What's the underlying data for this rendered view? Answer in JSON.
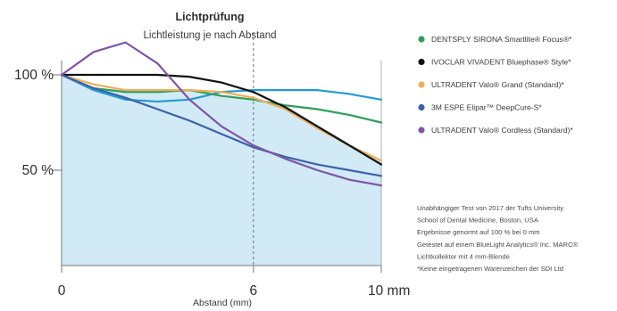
{
  "chart_data": {
    "type": "line",
    "title": "Lichtprüfung",
    "subtitle": "Lichtleistung je nach Abstand",
    "xlabel": "Abstand (mm)",
    "ylabel": "",
    "xlim": [
      0,
      10
    ],
    "ylim": [
      0,
      125
    ],
    "x_ticks": [
      {
        "value": 0,
        "label": "0"
      },
      {
        "value": 6,
        "label": "6"
      },
      {
        "value": 10,
        "label": "10 mm"
      }
    ],
    "y_ticks": [
      {
        "value": 100,
        "label": "100 %"
      },
      {
        "value": 50,
        "label": "50 %"
      }
    ],
    "reference_line_x": 6,
    "area": {
      "fill": "#d2e9f6",
      "x": [
        0,
        1,
        2,
        3,
        4,
        5,
        6,
        7,
        8,
        9,
        10
      ],
      "y": [
        100,
        93,
        92,
        91,
        92,
        89,
        87,
        84,
        74,
        64,
        55
      ]
    },
    "series": [
      {
        "name": "DENTSPLY SIRONA Smartlite® Focus®*",
        "color": "#2f9e5b",
        "x": [
          0,
          1,
          2,
          3,
          4,
          5,
          6,
          7,
          8,
          9,
          10
        ],
        "y": [
          100,
          93,
          91,
          91,
          92,
          89,
          87,
          84,
          82,
          79,
          75
        ]
      },
      {
        "name": "IVOCLAR VIVADENT Bluephase® Style*",
        "color": "#111111",
        "x": [
          0,
          1,
          2,
          3,
          4,
          5,
          6,
          7,
          8,
          9,
          10
        ],
        "y": [
          100,
          100,
          100,
          100,
          99,
          96,
          91,
          83,
          73,
          63,
          53
        ]
      },
      {
        "name": "ULTRADENT Valo® Grand (Standard)*",
        "color": "#f0ad5a",
        "x": [
          0,
          1,
          2,
          3,
          4,
          5,
          6,
          7,
          8,
          9,
          10
        ],
        "y": [
          100,
          95,
          92,
          92,
          92,
          91,
          88,
          82,
          72,
          63,
          55
        ]
      },
      {
        "name": "3M ESPE Elipar™ DeepCure-S*",
        "color": "#3b62a8",
        "x": [
          0,
          1,
          2,
          3,
          4,
          5,
          6,
          7,
          8,
          9,
          10
        ],
        "y": [
          100,
          93,
          88,
          82,
          76,
          69,
          62,
          57,
          53,
          50,
          47
        ]
      },
      {
        "name": "ULTRADENT Valo® Cordless (Standard)*",
        "color": "#7e56a4",
        "x": [
          0,
          1,
          2,
          3,
          4,
          5,
          6,
          7,
          8,
          9,
          10
        ],
        "y": [
          100,
          112,
          117,
          106,
          87,
          73,
          63,
          56,
          50,
          45,
          42
        ]
      },
      {
        "name": "",
        "color": "#259bd0",
        "x": [
          0,
          1,
          2,
          3,
          4,
          5,
          6,
          7,
          8,
          9,
          10
        ],
        "y": [
          100,
          92,
          87,
          86,
          87,
          91,
          92,
          92,
          92,
          90,
          87
        ]
      }
    ],
    "notes": [
      "Unabhängiger Test von 2017 der Tufts University",
      "School of Dental Medicine, Boston, USA",
      "Ergebnisse genormt auf 100 % bei 0 mm",
      "Getestet auf einem BlueLight Analytics® Inc. MARC®",
      "Lichtkollektor mit 4 mm-Blende",
      "*Keine eingetragenen Warenzeichen der SDI Ltd"
    ],
    "grid": false,
    "legend_position": "right"
  }
}
